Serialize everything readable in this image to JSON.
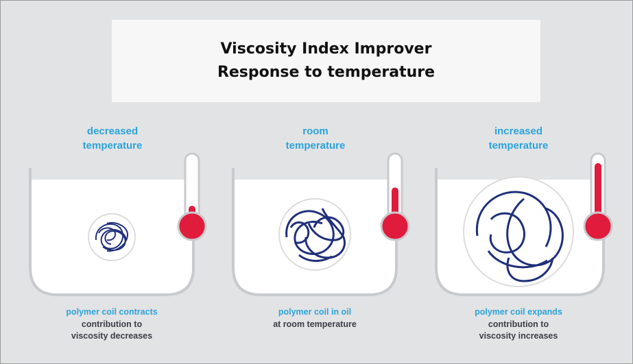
{
  "title": {
    "line1": "Viscosity Index Improver",
    "line2": "Response to temperature"
  },
  "panels": [
    {
      "heading_line1": "decreased",
      "heading_line2": "temperature",
      "caption_line1": "polymer coil contracts",
      "caption_line2": "contribution to",
      "caption_line3": "viscosity decreases",
      "thermometer_level": 0.2
    },
    {
      "heading_line1": "room",
      "heading_line2": "temperature",
      "caption_line1": "polymer coil in oil",
      "caption_line2": "at room temperature",
      "caption_line3": "",
      "thermometer_level": 0.5
    },
    {
      "heading_line1": "increased",
      "heading_line2": "temperature",
      "caption_line1": "polymer coil expands",
      "caption_line2": "contribution to",
      "caption_line3": "viscosity increases",
      "thermometer_level": 0.9
    }
  ],
  "colors": {
    "heading_blue": "#2aa3da",
    "coil_navy": "#1f2f7a",
    "mercury_red": "#e01b3c",
    "container_gray": "#c9cacd"
  }
}
